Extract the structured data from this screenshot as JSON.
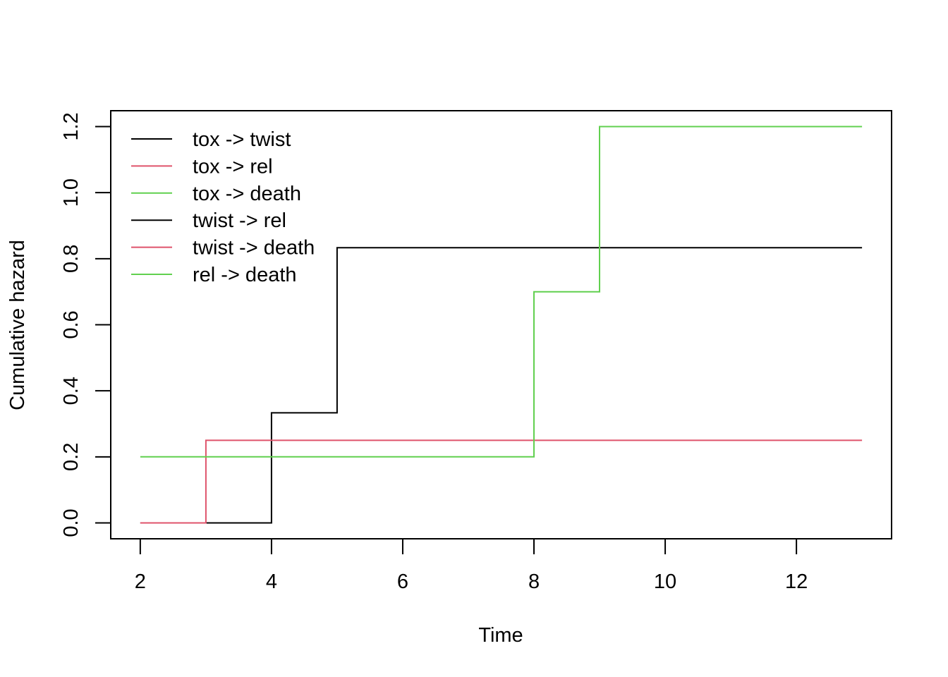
{
  "chart_data": {
    "type": "line",
    "step": true,
    "title": "",
    "xlabel": "Time",
    "ylabel": "Cumulative hazard",
    "xlim": [
      1.55,
      13.45
    ],
    "ylim": [
      -0.048,
      1.248
    ],
    "x_ticks": [
      2,
      4,
      6,
      8,
      10,
      12
    ],
    "y_ticks": [
      0.0,
      0.2,
      0.4,
      0.6,
      0.8,
      1.0,
      1.2
    ],
    "x_tick_labels": [
      "2",
      "4",
      "6",
      "8",
      "10",
      "12"
    ],
    "y_tick_labels": [
      "0.0",
      "0.2",
      "0.4",
      "0.6",
      "0.8",
      "1.0",
      "1.2"
    ],
    "grid": false,
    "legend_position": "top-left",
    "series": [
      {
        "name": "tox -> twist",
        "color": "#000000",
        "x": [
          2,
          4,
          5,
          13
        ],
        "y": [
          0.0,
          0.3333,
          0.8333,
          0.8333
        ]
      },
      {
        "name": "tox -> rel",
        "color": "#DF536B",
        "x": [
          2,
          3,
          13
        ],
        "y": [
          0.0,
          0.25,
          0.25
        ]
      },
      {
        "name": "tox -> death",
        "color": "#61D04F",
        "x": [
          2,
          8,
          9,
          13
        ],
        "y": [
          0.2,
          0.7,
          1.2,
          1.2
        ]
      },
      {
        "name": "twist -> rel",
        "color": "#000000",
        "x": [],
        "y": []
      },
      {
        "name": "twist -> death",
        "color": "#DF536B",
        "x": [],
        "y": []
      },
      {
        "name": "rel -> death",
        "color": "#61D04F",
        "x": [],
        "y": []
      }
    ]
  }
}
